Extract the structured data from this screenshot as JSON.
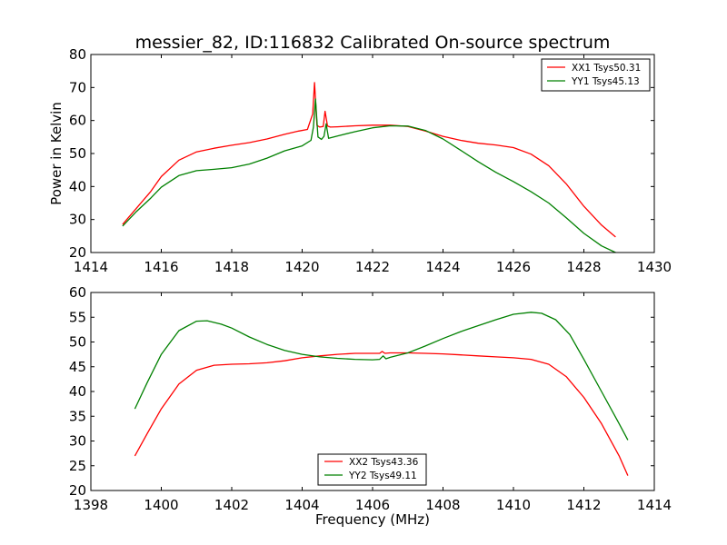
{
  "chart_data": [
    {
      "type": "line",
      "title": "messier_82, ID:116832 Calibrated On-source spectrum",
      "xlabel": "",
      "ylabel": "Power in Kelvin",
      "xlim": [
        1414,
        1430
      ],
      "ylim": [
        20,
        80
      ],
      "xticks": [
        1414,
        1416,
        1418,
        1420,
        1422,
        1424,
        1426,
        1428,
        1430
      ],
      "yticks": [
        20,
        30,
        40,
        50,
        60,
        70,
        80
      ],
      "grid": false,
      "legend_position": "top-right",
      "series": [
        {
          "name": "XX1 Tsys50.31",
          "color": "#ff0000",
          "x": [
            1414.9,
            1415.3,
            1415.7,
            1416.0,
            1416.5,
            1417.0,
            1417.5,
            1418.0,
            1418.5,
            1419.0,
            1419.5,
            1419.9,
            1420.15,
            1420.3,
            1420.35,
            1420.42,
            1420.5,
            1420.6,
            1420.65,
            1420.72,
            1420.8,
            1421.0,
            1421.5,
            1422.0,
            1422.5,
            1423.0,
            1423.5,
            1424.0,
            1424.5,
            1425.0,
            1425.5,
            1426.0,
            1426.5,
            1427.0,
            1427.5,
            1428.0,
            1428.5,
            1428.9
          ],
          "y": [
            28.5,
            33.5,
            38.5,
            43.0,
            48.0,
            50.5,
            51.6,
            52.5,
            53.3,
            54.4,
            55.8,
            56.8,
            57.3,
            62.0,
            71.5,
            58.5,
            58.0,
            58.2,
            62.8,
            58.3,
            58.0,
            58.1,
            58.4,
            58.6,
            58.6,
            58.2,
            56.8,
            55.2,
            54.0,
            53.1,
            52.6,
            51.8,
            49.8,
            46.3,
            40.8,
            34.0,
            28.3,
            24.7
          ]
        },
        {
          "name": "YY1 Tsys45.13",
          "color": "#008000",
          "x": [
            1414.9,
            1415.3,
            1415.7,
            1416.0,
            1416.5,
            1417.0,
            1417.5,
            1418.0,
            1418.5,
            1419.0,
            1419.5,
            1420.0,
            1420.25,
            1420.32,
            1420.38,
            1420.45,
            1420.55,
            1420.62,
            1420.68,
            1420.75,
            1421.0,
            1421.5,
            1422.0,
            1422.5,
            1423.0,
            1423.5,
            1424.0,
            1424.5,
            1425.0,
            1425.5,
            1426.0,
            1426.5,
            1427.0,
            1427.5,
            1428.0,
            1428.5,
            1428.9
          ],
          "y": [
            28.0,
            32.5,
            36.5,
            39.8,
            43.3,
            44.8,
            45.2,
            45.7,
            46.8,
            48.6,
            50.8,
            52.3,
            54.0,
            58.0,
            66.5,
            55.0,
            54.3,
            55.2,
            59.0,
            54.6,
            55.3,
            56.6,
            57.8,
            58.4,
            58.3,
            57.0,
            54.4,
            51.0,
            47.5,
            44.3,
            41.5,
            38.4,
            35.0,
            30.5,
            25.8,
            22.0,
            20.0
          ]
        }
      ]
    },
    {
      "type": "line",
      "title": "",
      "xlabel": "Frequency (MHz)",
      "ylabel": "",
      "xlim": [
        1398,
        1414
      ],
      "ylim": [
        20,
        60
      ],
      "xticks": [
        1398,
        1400,
        1402,
        1404,
        1406,
        1408,
        1410,
        1412,
        1414
      ],
      "yticks": [
        20,
        25,
        30,
        35,
        40,
        45,
        50,
        55,
        60
      ],
      "grid": false,
      "legend_position": "bottom-center",
      "series": [
        {
          "name": "XX2 Tsys43.36",
          "color": "#ff0000",
          "x": [
            1399.25,
            1399.6,
            1400.0,
            1400.5,
            1401.0,
            1401.5,
            1402.0,
            1402.5,
            1403.0,
            1403.5,
            1404.0,
            1404.5,
            1405.0,
            1405.5,
            1406.0,
            1406.2,
            1406.27,
            1406.35,
            1406.5,
            1407.0,
            1407.5,
            1408.0,
            1408.5,
            1409.0,
            1409.5,
            1410.0,
            1410.5,
            1411.0,
            1411.5,
            1412.0,
            1412.5,
            1413.0,
            1413.25
          ],
          "y": [
            27.0,
            31.5,
            36.5,
            41.5,
            44.3,
            45.3,
            45.5,
            45.6,
            45.8,
            46.2,
            46.8,
            47.2,
            47.5,
            47.7,
            47.7,
            47.7,
            48.1,
            47.7,
            47.8,
            47.8,
            47.7,
            47.6,
            47.4,
            47.2,
            47.0,
            46.8,
            46.5,
            45.5,
            43.0,
            38.8,
            33.5,
            27.0,
            23.0
          ]
        },
        {
          "name": "YY2 Tsys49.11",
          "color": "#008000",
          "x": [
            1399.25,
            1399.6,
            1400.0,
            1400.5,
            1401.0,
            1401.3,
            1401.7,
            1402.0,
            1402.5,
            1403.0,
            1403.5,
            1404.0,
            1404.5,
            1405.0,
            1405.5,
            1406.0,
            1406.2,
            1406.3,
            1406.38,
            1406.5,
            1407.0,
            1407.5,
            1408.0,
            1408.5,
            1409.0,
            1409.5,
            1410.0,
            1410.5,
            1410.8,
            1411.2,
            1411.6,
            1412.0,
            1412.5,
            1413.0,
            1413.25
          ],
          "y": [
            36.5,
            41.8,
            47.5,
            52.3,
            54.2,
            54.3,
            53.6,
            52.8,
            51.0,
            49.5,
            48.3,
            47.5,
            47.0,
            46.7,
            46.5,
            46.4,
            46.5,
            47.2,
            46.6,
            46.9,
            47.8,
            49.2,
            50.7,
            52.1,
            53.3,
            54.5,
            55.6,
            56.0,
            55.8,
            54.5,
            51.5,
            46.5,
            40.0,
            33.5,
            30.2
          ]
        }
      ]
    }
  ]
}
